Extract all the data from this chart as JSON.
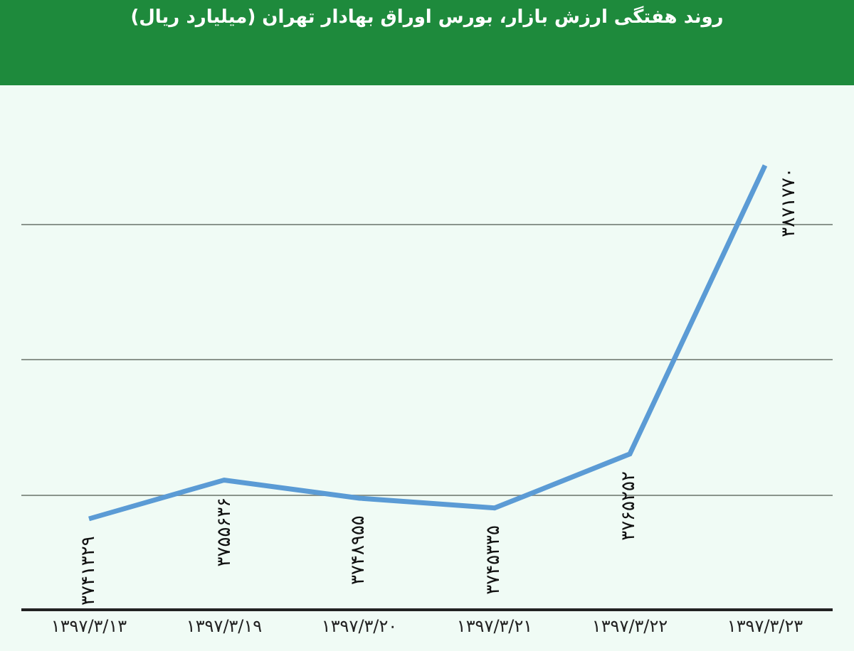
{
  "chart_data": {
    "type": "line",
    "title": "روند هفتگی ارزش بازار، بورس اوراق بهادار تهران (میلیارد ریال)",
    "categories": [
      "۱۳۹۷/۳/۱۳",
      "۱۳۹۷/۳/۱۹",
      "۱۳۹۷/۳/۲۰",
      "۱۳۹۷/۳/۲۱",
      "۱۳۹۷/۳/۲۲",
      "۱۳۹۷/۳/۲۳"
    ],
    "series": [
      {
        "color": "#5b9bd5",
        "values": [
          3741329,
          3755636,
          3748955,
          3745335,
          3765252,
          3871770
        ],
        "value_labels": [
          "۳۷۴۱۳۲۹",
          "۳۷۵۵۶۳۶",
          "۳۷۴۸۹۵۵",
          "۳۷۴۵۳۳۵",
          "۳۷۶۵۲۵۲",
          "۳۸۷۱۷۷۰"
        ]
      }
    ],
    "grid": "y",
    "tick_labels": "x",
    "marker": "none",
    "line_style": "solid"
  }
}
